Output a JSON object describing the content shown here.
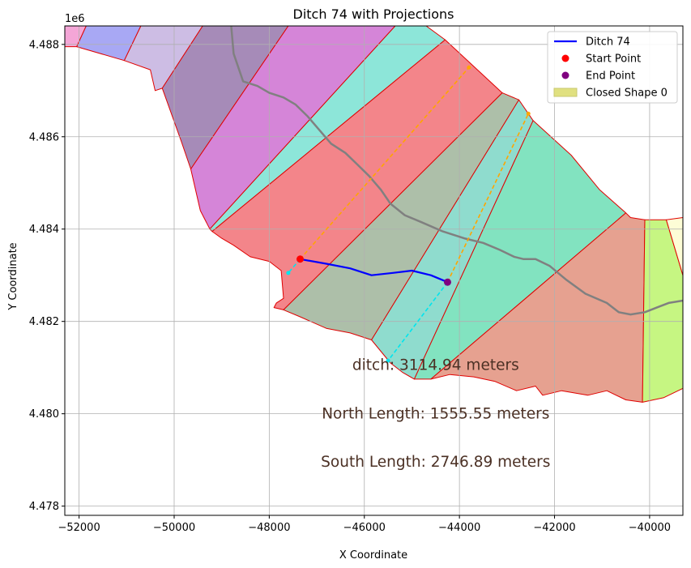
{
  "chart_data": {
    "type": "line",
    "title": "Ditch 74 with Projections",
    "xlabel": "X Coordinate",
    "ylabel": "Y Coordinate",
    "y_offset_label": "1e6",
    "xlim": [
      -52300,
      -39300
    ],
    "ylim": [
      4477800,
      4488400
    ],
    "x_ticks": [
      -52000,
      -50000,
      -48000,
      -46000,
      -44000,
      -42000,
      -40000
    ],
    "x_tick_labels": [
      "−52000",
      "−50000",
      "−48000",
      "−46000",
      "−44000",
      "−42000",
      "−40000"
    ],
    "y_ticks": [
      4478000,
      4480000,
      4482000,
      4484000,
      4486000,
      4488000
    ],
    "y_tick_labels": [
      "4.478",
      "4.480",
      "4.482",
      "4.484",
      "4.486",
      "4.488"
    ],
    "grid": true,
    "legend_position": "top-right",
    "legend": [
      {
        "label": "Ditch 74",
        "kind": "line",
        "color": "#0000ff"
      },
      {
        "label": "Start Point",
        "kind": "dot",
        "color": "#ff0000"
      },
      {
        "label": "End Point",
        "kind": "dot",
        "color": "#800080"
      },
      {
        "label": "Closed Shape 0",
        "kind": "patch",
        "color": "#e0e080"
      }
    ],
    "annotations": [
      {
        "text": "ditch: 3114.94 meters",
        "x": -44500,
        "y": 4480950
      },
      {
        "text": "North Length: 1555.55 meters",
        "x": -44500,
        "y": 4479900
      },
      {
        "text": "South Length: 2746.89 meters",
        "x": -44500,
        "y": 4478850
      }
    ],
    "polygons": [
      {
        "color": "#f4a6d7",
        "points": [
          [
            -52300,
            4488400
          ],
          [
            -51850,
            4488400
          ],
          [
            -52050,
            4487950
          ],
          [
            -52300,
            4487950
          ]
        ]
      },
      {
        "color": "#a8a8f4",
        "points": [
          [
            -51850,
            4488400
          ],
          [
            -50700,
            4488400
          ],
          [
            -51050,
            4487650
          ],
          [
            -52050,
            4487950
          ]
        ]
      },
      {
        "color": "#cdbde4",
        "points": [
          [
            -50700,
            4488400
          ],
          [
            -49400,
            4488400
          ],
          [
            -50250,
            4487050
          ],
          [
            -50400,
            4487000
          ],
          [
            -50500,
            4487450
          ],
          [
            -51050,
            4487650
          ]
        ]
      },
      {
        "color": "#a68bb8",
        "points": [
          [
            -49400,
            4488400
          ],
          [
            -47600,
            4488400
          ],
          [
            -49650,
            4485300
          ],
          [
            -49850,
            4485900
          ],
          [
            -50250,
            4487050
          ]
        ]
      },
      {
        "color": "#d585d8",
        "points": [
          [
            -47600,
            4488400
          ],
          [
            -45350,
            4488400
          ],
          [
            -49250,
            4484000
          ],
          [
            -49450,
            4484400
          ],
          [
            -49650,
            4485300
          ]
        ]
      },
      {
        "color": "#8de6d9",
        "points": [
          [
            -45350,
            4488400
          ],
          [
            -44700,
            4488400
          ],
          [
            -44300,
            4488100
          ],
          [
            -49200,
            4483950
          ],
          [
            -49250,
            4484000
          ]
        ]
      },
      {
        "color": "#f3858a",
        "points": [
          [
            -44300,
            4488100
          ],
          [
            -43100,
            4486950
          ],
          [
            -47700,
            4482250
          ],
          [
            -47900,
            4482300
          ],
          [
            -47850,
            4482400
          ],
          [
            -47700,
            4482500
          ],
          [
            -47750,
            4483100
          ],
          [
            -48000,
            4483300
          ],
          [
            -48400,
            4483400
          ],
          [
            -48750,
            4483650
          ],
          [
            -49000,
            4483800
          ],
          [
            -49200,
            4483950
          ]
        ]
      },
      {
        "color": "#adbfa9",
        "points": [
          [
            -43100,
            4486950
          ],
          [
            -42750,
            4486800
          ],
          [
            -45850,
            4481600
          ],
          [
            -46300,
            4481750
          ],
          [
            -46800,
            4481850
          ],
          [
            -47350,
            4482100
          ],
          [
            -47700,
            4482250
          ]
        ]
      },
      {
        "color": "#8fdcce",
        "points": [
          [
            -42750,
            4486800
          ],
          [
            -42450,
            4486350
          ],
          [
            -44950,
            4480750
          ],
          [
            -45200,
            4480900
          ],
          [
            -45450,
            4481100
          ],
          [
            -45850,
            4481600
          ]
        ]
      },
      {
        "color": "#82e3c0",
        "points": [
          [
            -42450,
            4486350
          ],
          [
            -41650,
            4485600
          ],
          [
            -41050,
            4484850
          ],
          [
            -40500,
            4484350
          ],
          [
            -44600,
            4480750
          ],
          [
            -44950,
            4480750
          ]
        ]
      },
      {
        "color": "#e6a190",
        "points": [
          [
            -40500,
            4484350
          ],
          [
            -40400,
            4484250
          ],
          [
            -40100,
            4484200
          ],
          [
            -40150,
            4480250
          ],
          [
            -40500,
            4480300
          ],
          [
            -40900,
            4480500
          ],
          [
            -41300,
            4480400
          ],
          [
            -41850,
            4480500
          ],
          [
            -42250,
            4480400
          ],
          [
            -42400,
            4480600
          ],
          [
            -42800,
            4480500
          ],
          [
            -43250,
            4480700
          ],
          [
            -43700,
            4480800
          ],
          [
            -44200,
            4480850
          ],
          [
            -44600,
            4480750
          ]
        ]
      },
      {
        "color": "#c6f682",
        "points": [
          [
            -40100,
            4484200
          ],
          [
            -39650,
            4484200
          ],
          [
            -39300,
            4483000
          ],
          [
            -39300,
            4480550
          ],
          [
            -39700,
            4480350
          ],
          [
            -40150,
            4480250
          ]
        ]
      },
      {
        "color": "#fdfdd6",
        "points": [
          [
            -39650,
            4484200
          ],
          [
            -39300,
            4484250
          ],
          [
            -39300,
            4483000
          ]
        ]
      }
    ],
    "river": [
      [
        -48800,
        4488400
      ],
      [
        -48750,
        4487800
      ],
      [
        -48550,
        4487200
      ],
      [
        -48250,
        4487100
      ],
      [
        -48000,
        4486950
      ],
      [
        -47700,
        4486850
      ],
      [
        -47450,
        4486700
      ],
      [
        -47200,
        4486450
      ],
      [
        -46950,
        4486150
      ],
      [
        -46700,
        4485850
      ],
      [
        -46400,
        4485650
      ],
      [
        -46150,
        4485400
      ],
      [
        -45900,
        4485150
      ],
      [
        -45650,
        4484850
      ],
      [
        -45450,
        4484550
      ],
      [
        -45150,
        4484300
      ],
      [
        -44800,
        4484150
      ],
      [
        -44350,
        4483950
      ],
      [
        -43900,
        4483800
      ],
      [
        -43500,
        4483700
      ],
      [
        -43150,
        4483550
      ],
      [
        -42850,
        4483400
      ],
      [
        -42650,
        4483350
      ],
      [
        -42400,
        4483350
      ],
      [
        -42100,
        4483200
      ],
      [
        -41750,
        4482900
      ],
      [
        -41350,
        4482600
      ],
      [
        -40900,
        4482400
      ],
      [
        -40650,
        4482200
      ],
      [
        -40400,
        4482150
      ],
      [
        -40100,
        4482200
      ],
      [
        -39850,
        4482300
      ],
      [
        -39600,
        4482400
      ],
      [
        -39300,
        4482450
      ]
    ],
    "ditch": {
      "color": "#0000ff",
      "points": [
        [
          -47350,
          4483350
        ],
        [
          -46800,
          4483250
        ],
        [
          -46300,
          4483150
        ],
        [
          -45850,
          4483000
        ],
        [
          -45400,
          4483050
        ],
        [
          -45000,
          4483100
        ],
        [
          -44600,
          4483000
        ],
        [
          -44250,
          4482850
        ]
      ]
    },
    "start_point": {
      "x": -47350,
      "y": 4483350,
      "color": "#ff0000"
    },
    "end_point": {
      "x": -44250,
      "y": 4482850,
      "color": "#800080"
    },
    "north_projections": [
      {
        "color": "#ffa500",
        "from": [
          -47350,
          4483350
        ],
        "to": [
          -43800,
          4487500
        ]
      },
      {
        "color": "#ffa500",
        "from": [
          -44250,
          4482850
        ],
        "to": [
          -42550,
          4486500
        ]
      }
    ],
    "south_projections": [
      {
        "color": "#00e5ee",
        "from": [
          -47350,
          4483350
        ],
        "to": [
          -47600,
          4483050
        ]
      },
      {
        "color": "#00e5ee",
        "from": [
          -44250,
          4482850
        ],
        "to": [
          -45500,
          4481150
        ]
      }
    ]
  }
}
